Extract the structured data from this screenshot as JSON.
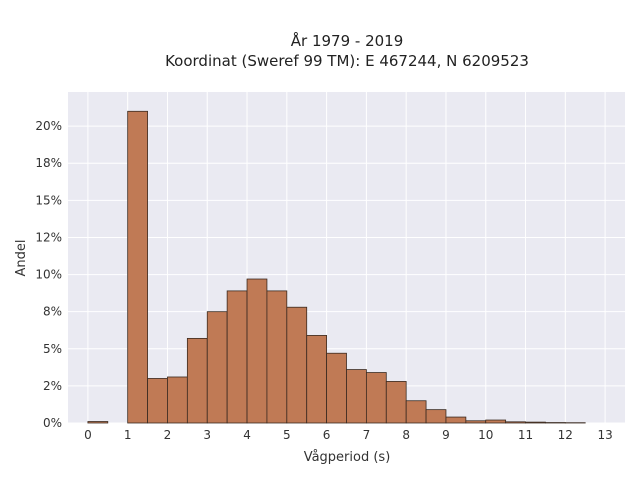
{
  "chart_data": {
    "type": "bar",
    "title": "År 1979 - 2019",
    "subtitle": "Koordinat (Sweref 99 TM): E 467244, N 6209523",
    "xlabel": "Vågperiod (s)",
    "ylabel": "Andel",
    "x_ticks": [
      0,
      1,
      2,
      3,
      4,
      5,
      6,
      7,
      8,
      9,
      10,
      11,
      12,
      13
    ],
    "x_tick_labels": [
      "0",
      "1",
      "2",
      "3",
      "4",
      "5",
      "6",
      "7",
      "8",
      "9",
      "10",
      "11",
      "12",
      "13"
    ],
    "y_ticks": [
      0,
      2.5,
      5,
      7.5,
      10,
      12.5,
      15,
      17.5,
      20
    ],
    "y_tick_labels": [
      "0%",
      "2%",
      "5%",
      "8%",
      "10%",
      "12%",
      "15%",
      "18%",
      "20%"
    ],
    "xlim": [
      -0.5,
      13.5
    ],
    "ylim": [
      0,
      22.3
    ],
    "bin_width": 0.5,
    "bins": [
      {
        "start": 0.0,
        "value": 0.1
      },
      {
        "start": 1.0,
        "value": 21.0
      },
      {
        "start": 1.5,
        "value": 3.0
      },
      {
        "start": 2.0,
        "value": 3.1
      },
      {
        "start": 2.5,
        "value": 5.7
      },
      {
        "start": 3.0,
        "value": 7.5
      },
      {
        "start": 3.5,
        "value": 8.9
      },
      {
        "start": 4.0,
        "value": 9.7
      },
      {
        "start": 4.5,
        "value": 8.9
      },
      {
        "start": 5.0,
        "value": 7.8
      },
      {
        "start": 5.5,
        "value": 5.9
      },
      {
        "start": 6.0,
        "value": 4.7
      },
      {
        "start": 6.5,
        "value": 3.6
      },
      {
        "start": 7.0,
        "value": 3.4
      },
      {
        "start": 7.5,
        "value": 2.8
      },
      {
        "start": 8.0,
        "value": 1.5
      },
      {
        "start": 8.5,
        "value": 0.9
      },
      {
        "start": 9.0,
        "value": 0.4
      },
      {
        "start": 9.5,
        "value": 0.15
      },
      {
        "start": 10.0,
        "value": 0.2
      },
      {
        "start": 10.5,
        "value": 0.08
      },
      {
        "start": 11.0,
        "value": 0.06
      },
      {
        "start": 11.5,
        "value": 0.03
      },
      {
        "start": 12.0,
        "value": 0.02
      }
    ],
    "bar_color": "#c07a55",
    "bar_edge_color": "#3a2a20",
    "background_color": "#eaeaf2",
    "grid": true
  }
}
